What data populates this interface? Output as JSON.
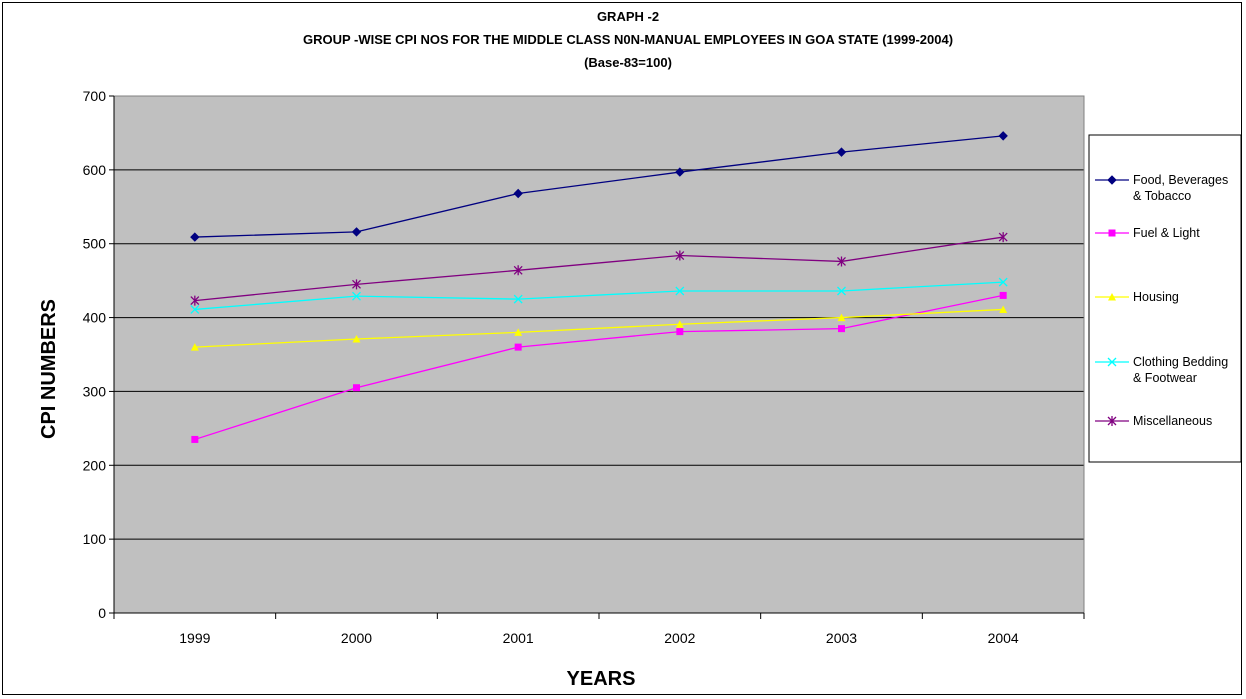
{
  "chart_data": {
    "type": "line",
    "title": "GRAPH -2",
    "subtitle": "GROUP -WISE CPI NOS FOR THE MIDDLE CLASS N0N-MANUAL EMPLOYEES IN GOA STATE (1999-2004)",
    "base_note": "(Base-83=100)",
    "xlabel": "YEARS",
    "ylabel": "CPI NUMBERS",
    "categories": [
      "1999",
      "2000",
      "2001",
      "2002",
      "2003",
      "2004"
    ],
    "ylim": [
      0,
      700
    ],
    "yticks": [
      "0",
      "100",
      "200",
      "300",
      "400",
      "500",
      "600",
      "700"
    ],
    "grid": true,
    "plot_background": "#c0c0c0",
    "legend_position": "right",
    "series": [
      {
        "name": "Food, Beverages & Tobacco",
        "legend_lines": [
          "Food, Beverages",
          "& Tobacco"
        ],
        "color": "#000080",
        "marker": "diamond",
        "values": [
          509,
          516,
          568,
          597,
          624,
          646
        ]
      },
      {
        "name": "Fuel & Light",
        "legend_lines": [
          "Fuel & Light"
        ],
        "color": "#ff00ff",
        "marker": "square",
        "values": [
          235,
          305,
          360,
          381,
          385,
          430
        ]
      },
      {
        "name": "Housing",
        "legend_lines": [
          "Housing"
        ],
        "color": "#ffff00",
        "marker": "triangle",
        "values": [
          360,
          371,
          380,
          391,
          400,
          411
        ]
      },
      {
        "name": "Clothing Bedding & Footwear",
        "legend_lines": [
          "Clothing Bedding",
          "& Footwear"
        ],
        "color": "#00ffff",
        "marker": "x",
        "values": [
          411,
          429,
          425,
          436,
          436,
          448
        ]
      },
      {
        "name": "Miscellaneous",
        "legend_lines": [
          "Miscellaneous"
        ],
        "color": "#800080",
        "marker": "star",
        "values": [
          423,
          445,
          464,
          484,
          476,
          509
        ]
      }
    ]
  }
}
